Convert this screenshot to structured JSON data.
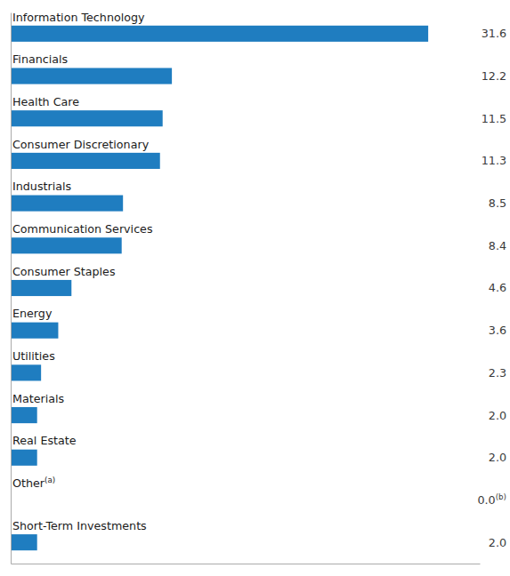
{
  "chart_data": {
    "type": "bar",
    "orientation": "horizontal",
    "categories": [
      "Short-Term Investments",
      "Other(a)",
      "Real Estate",
      "Materials",
      "Utilities",
      "Energy",
      "Consumer Staples",
      "Communication Services",
      "Industrials",
      "Consumer Discretionary",
      "Health Care",
      "Financials",
      "Information Technology"
    ],
    "values": [
      2.0,
      0.0,
      2.0,
      2.0,
      2.3,
      3.6,
      4.6,
      8.4,
      8.5,
      11.3,
      11.5,
      12.2,
      31.6
    ],
    "value_labels": [
      "2.0",
      "0.0(b)",
      "2.0",
      "2.0",
      "2.3",
      "3.6",
      "4.6",
      "8.4",
      "8.5",
      "11.3",
      "11.5",
      "12.2",
      "31.6"
    ],
    "data_labels": true,
    "color": "#1f7dc0",
    "xlim": [
      0,
      35.5
    ],
    "tick_labels": false,
    "grid": false
  }
}
